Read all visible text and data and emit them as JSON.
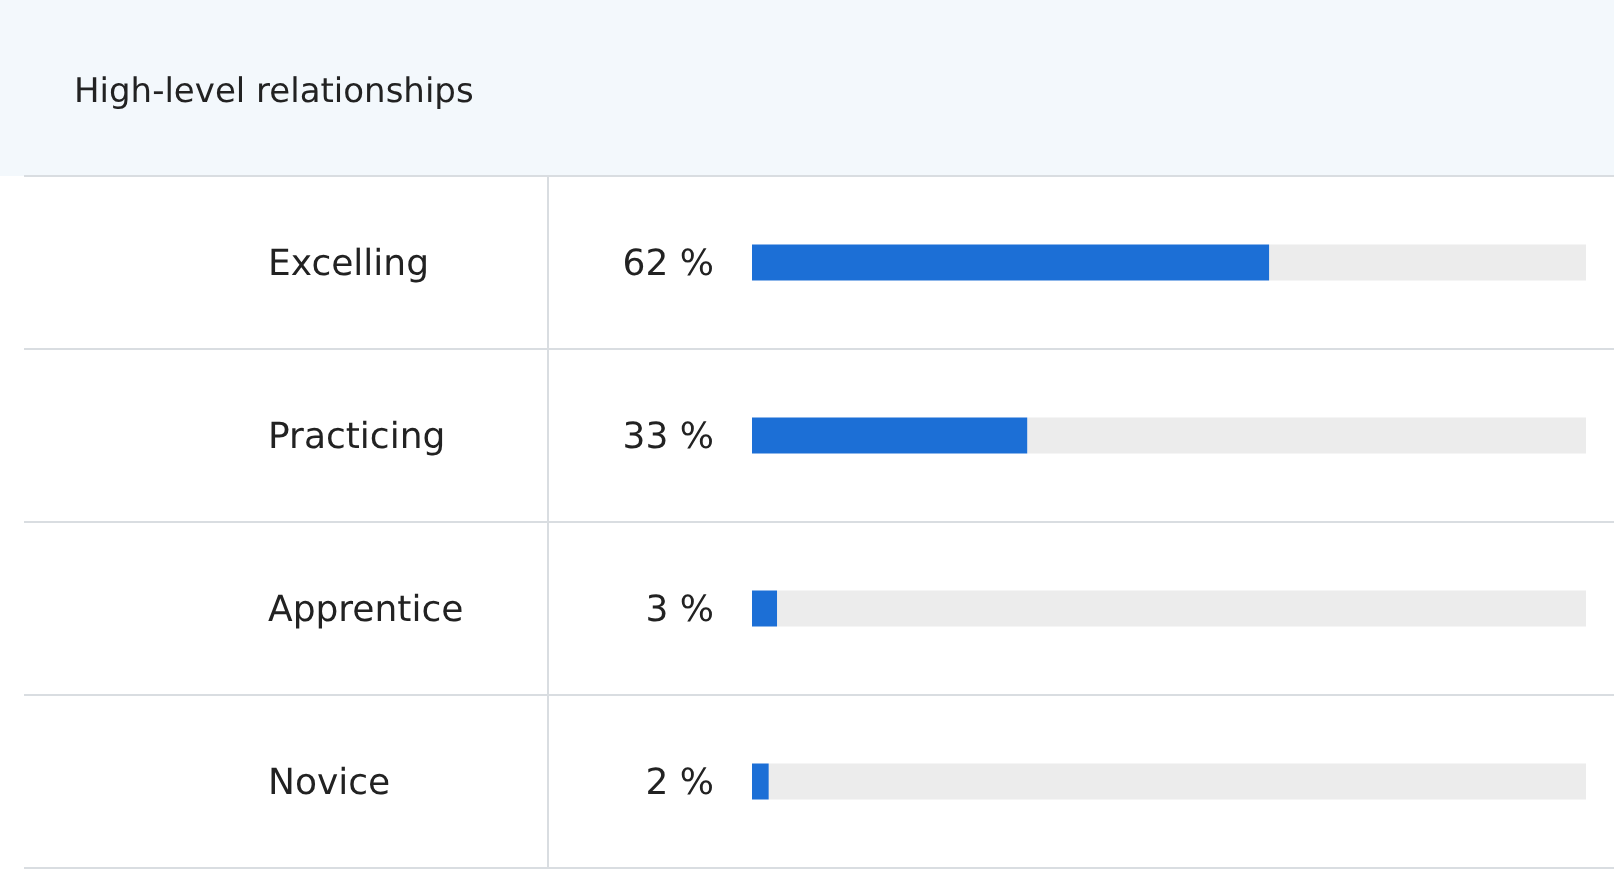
{
  "chart_data": {
    "type": "bar",
    "orientation": "horizontal",
    "title": "High-level relationships",
    "categories": [
      "Excelling",
      "Practicing",
      "Apprentice",
      "Novice"
    ],
    "values": [
      62,
      33,
      3,
      2
    ],
    "value_labels": [
      "62 %",
      "33 %",
      "3 %",
      "2 %"
    ],
    "color": "#1c6fd6",
    "xlim": [
      0,
      100
    ],
    "tick_labels": "y"
  }
}
